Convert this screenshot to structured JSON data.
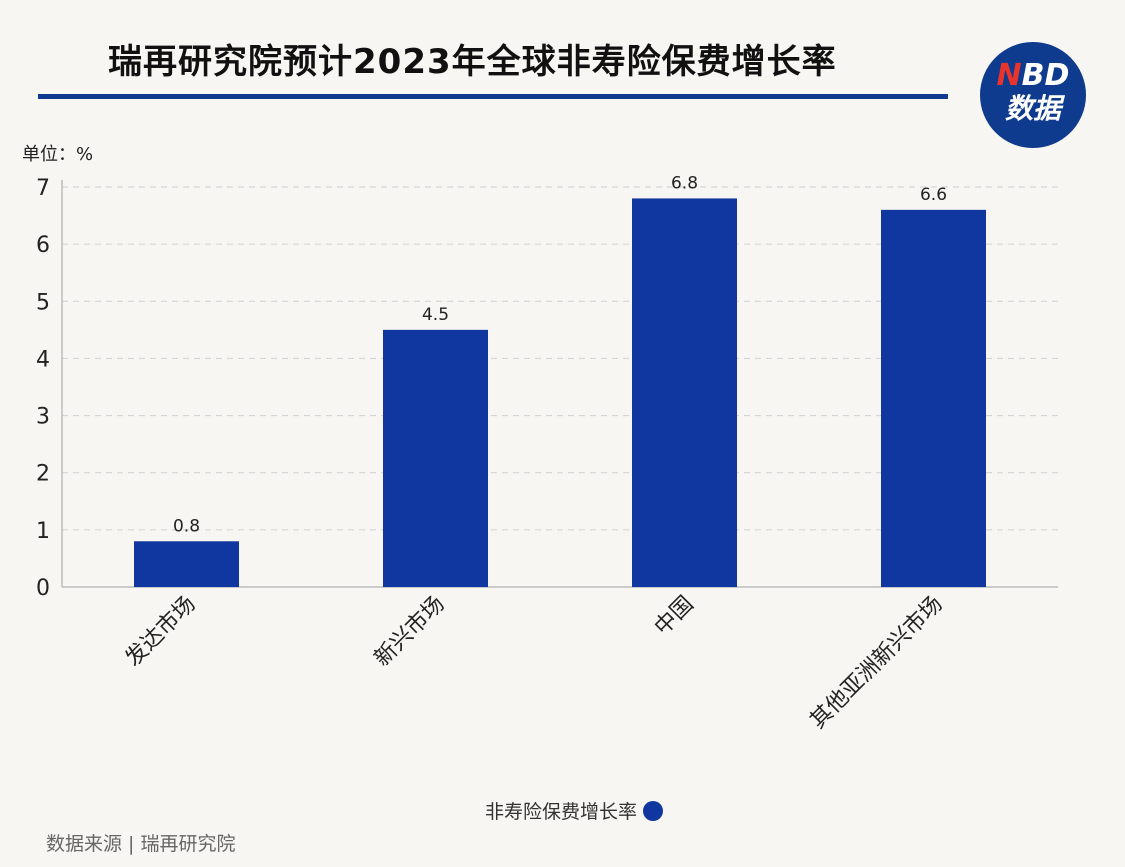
{
  "title": "瑞再研究院预计2023年全球非寿险保费增长率",
  "logo": {
    "line1_n": "N",
    "line1_rest": "BD",
    "line2": "数据"
  },
  "unit_label": "单位：%",
  "legend_label": "非寿险保费增长率",
  "source": "数据来源 | 瑞再研究院",
  "colors": {
    "bar": "#1036a0",
    "title_rule": "#0f3a8f",
    "logo_bg": "#0e3b8e",
    "logo_accent": "#e8342c"
  },
  "chart_data": {
    "type": "bar",
    "title": "瑞再研究院预计2023年全球非寿险保费增长率",
    "ylabel": "单位：%",
    "xlabel": "",
    "categories": [
      "发达市场",
      "新兴市场",
      "中国",
      "其他亚洲新兴市场"
    ],
    "series": [
      {
        "name": "非寿险保费增长率",
        "values": [
          0.8,
          4.5,
          6.8,
          6.6
        ]
      }
    ],
    "data_labels": [
      "0.8",
      "4.5",
      "6.8",
      "6.6"
    ],
    "yticks": [
      "0",
      "1",
      "2",
      "3",
      "4",
      "5",
      "6",
      "7"
    ],
    "ylim": [
      0,
      7
    ],
    "grid": true,
    "legend_position": "bottom-center"
  }
}
